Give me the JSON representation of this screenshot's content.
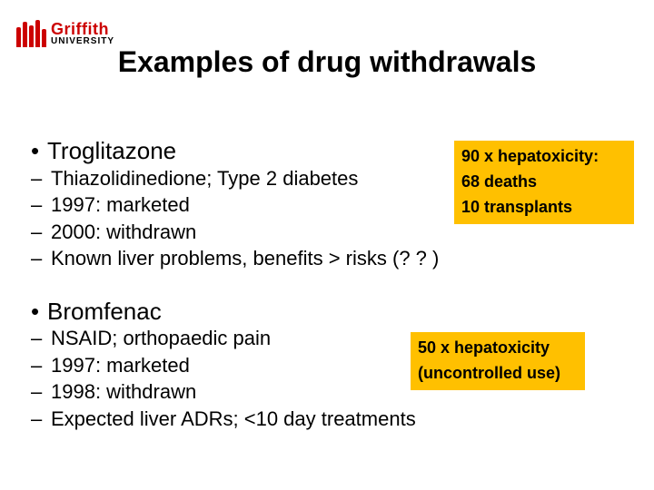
{
  "brand": {
    "name": "Griffith",
    "sub": "UNIVERSITY",
    "color": "#cc0000"
  },
  "title": "Examples of drug withdrawals",
  "items": [
    {
      "name": "Troglitazone",
      "points": [
        "Thiazolidinedione; Type 2 diabetes",
        "1997: marketed",
        "2000: withdrawn",
        "Known liver problems, benefits > risks (? ? )"
      ]
    },
    {
      "name": "Bromfenac",
      "points": [
        "NSAID; orthopaedic pain",
        "1997: marketed",
        "1998: withdrawn",
        "Expected liver ADRs; <10 day treatments"
      ]
    }
  ],
  "callouts": [
    {
      "l1": "90 x hepatoxicity:",
      "l2": "68 deaths",
      "l3": "10 transplants"
    },
    {
      "l1": "50 x hepatoxicity",
      "l2": "(uncontrolled use)"
    }
  ],
  "style": {
    "background": "#ffffff",
    "callout_bg": "#ffc000",
    "text_color": "#000000",
    "title_fontsize": 32,
    "heading_fontsize": 26,
    "body_fontsize": 22,
    "callout_fontsize": 18
  }
}
